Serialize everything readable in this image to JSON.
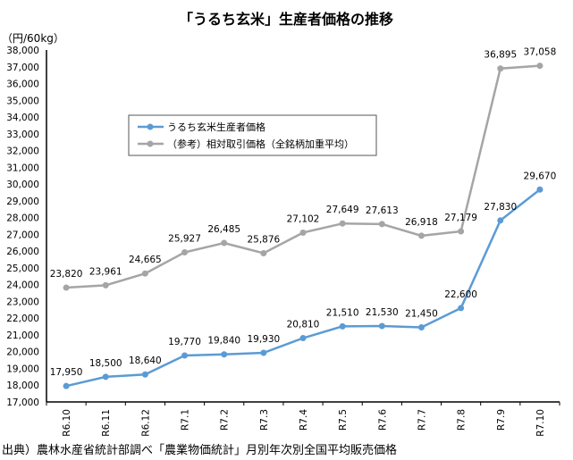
{
  "chart_data": {
    "type": "line",
    "title": "「うるち玄米」生産者価格の推移",
    "ylabel": "（円/60kg）",
    "xlabel": "",
    "ylim": [
      17000,
      38000
    ],
    "ytick_step": 1000,
    "grid": false,
    "legend_position": "upper-left-center",
    "categories": [
      "R6.10",
      "R6.11",
      "R6.12",
      "R7.1",
      "R7.2",
      "R7.3",
      "R7.4",
      "R7.5",
      "R7.6",
      "R7.7",
      "R7.8",
      "R7.9",
      "R7.10"
    ],
    "series": [
      {
        "name": "うるち玄米生産者価格",
        "color": "#5b9bd5",
        "values": [
          17950,
          18500,
          18640,
          19770,
          19840,
          19930,
          20810,
          21510,
          21530,
          21450,
          22600,
          27830,
          29670
        ]
      },
      {
        "name": "（参考）相対取引価格（全銘柄加重平均）",
        "color": "#a5a5a5",
        "values": [
          23820,
          23961,
          24665,
          25927,
          26485,
          25876,
          27102,
          27649,
          27613,
          26918,
          27179,
          36895,
          37058
        ]
      }
    ],
    "source": "出典）農林水産省統計部調べ「農業物価統計」月別年次別全国平均販売価格"
  }
}
